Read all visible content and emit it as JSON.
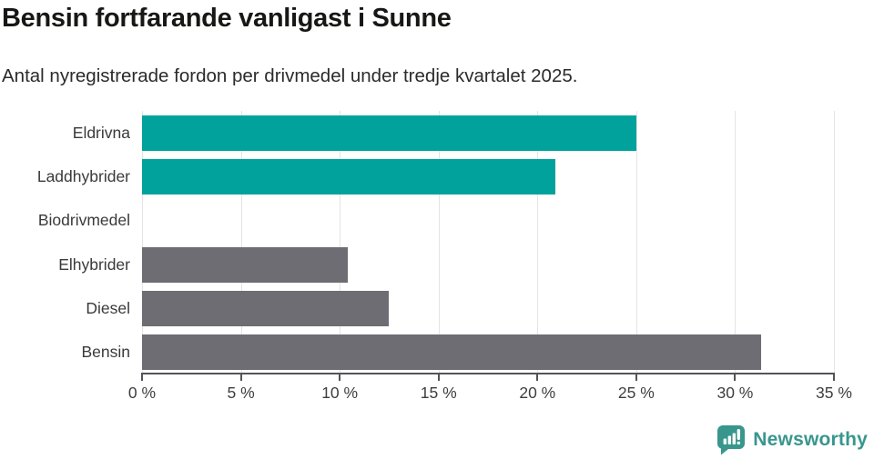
{
  "header": {
    "title": "Bensin fortfarande vanligast i Sunne",
    "subtitle": "Antal nyregistrerade fordon per drivmedel under tredje kvartalet 2025."
  },
  "chart_data": {
    "type": "bar",
    "orientation": "horizontal",
    "title": "Bensin fortfarande vanligast i Sunne",
    "subtitle": "Antal nyregistrerade fordon per drivmedel under tredje kvartalet 2025.",
    "categories": [
      "Eldrivna",
      "Laddhybrider",
      "Biodrivmedel",
      "Elhybrider",
      "Diesel",
      "Bensin"
    ],
    "values": [
      25.0,
      20.9,
      0,
      10.4,
      12.5,
      31.3
    ],
    "unit": "%",
    "xlim": [
      0,
      35
    ],
    "x_ticks": [
      "0 %",
      "5 %",
      "10 %",
      "15 %",
      "20 %",
      "25 %",
      "30 %",
      "35 %"
    ],
    "x_tick_values": [
      0,
      5,
      10,
      15,
      20,
      25,
      30,
      35
    ],
    "bar_colors": [
      "#00a29b",
      "#00a29b",
      "#6e6d73",
      "#6e6d73",
      "#6e6d73",
      "#6e6d73"
    ],
    "grid": "vertical",
    "legend": "none"
  },
  "colors": {
    "accent_teal": "#00a29b",
    "neutral_gray": "#6e6d73",
    "gridline": "#e4e4e4",
    "axis": "#54535a",
    "brand_teal": "#38968d"
  },
  "footer": {
    "brand": "Newsworthy",
    "logo_icon": "newsworthy-speech-bubble-barchart-icon"
  }
}
